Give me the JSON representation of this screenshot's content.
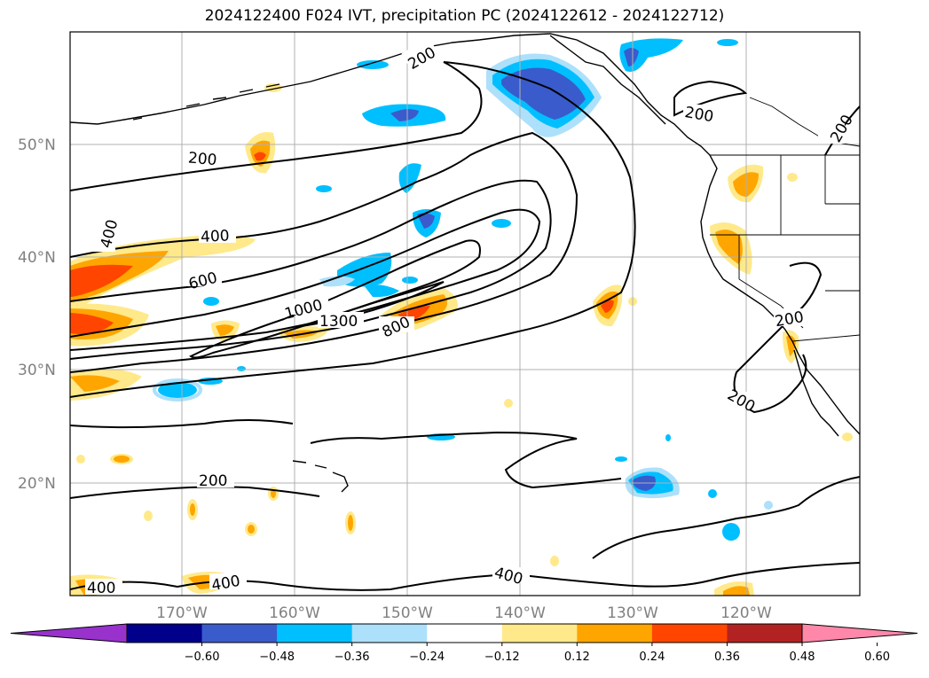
{
  "title": "2024122400 F024 IVT, precipitation PC (2024122612 - 2024122712)",
  "lat_labels": [
    "50°N",
    "40°N",
    "30°N",
    "20°N"
  ],
  "lon_labels": [
    "170°W",
    "160°W",
    "150°W",
    "140°W",
    "130°W",
    "120°W"
  ],
  "colorbar": {
    "tick_labels": [
      "−0.60",
      "−0.48",
      "−0.36",
      "−0.24",
      "−0.12",
      "0.12",
      "0.24",
      "0.36",
      "0.48",
      "0.60"
    ],
    "colors": [
      "#9932CC",
      "#00008B",
      "#3A5BCC",
      "#00BFFF",
      "#ADE0FA",
      "#FFFFFF",
      "#FFE98A",
      "#FFA500",
      "#FF4500",
      "#B22222",
      "#FF88AA"
    ]
  },
  "contour_labels": [
    "200",
    "200",
    "200",
    "200",
    "200",
    "200",
    "200",
    "400",
    "400",
    "400",
    "400",
    "400",
    "600",
    "800",
    "1000",
    "1300"
  ],
  "colors": {
    "contour": "#000000",
    "grid": "#b0b0b0",
    "coast": "#000000"
  }
}
